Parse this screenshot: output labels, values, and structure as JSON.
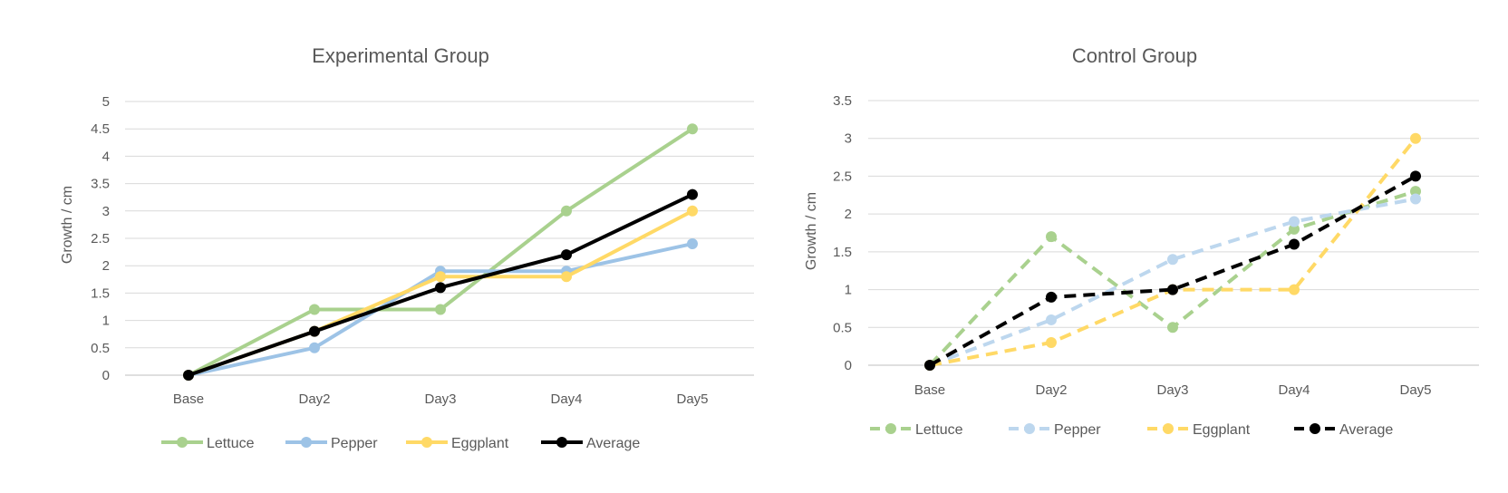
{
  "chart_data": [
    {
      "type": "line",
      "title": "Experimental Group",
      "xlabel": "",
      "ylabel": "Growth / cm",
      "categories": [
        "Base",
        "Day2",
        "Day3",
        "Day4",
        "Day5"
      ],
      "ylim": [
        0,
        5
      ],
      "yticks": [
        0,
        0.5,
        1,
        1.5,
        2,
        2.5,
        3,
        3.5,
        4,
        4.5,
        5
      ],
      "grid": true,
      "legend": "bottom",
      "line_style": "solid",
      "series": [
        {
          "name": "Lettuce",
          "color": "#A9D18E",
          "values": [
            0,
            1.2,
            1.2,
            3.0,
            4.5
          ]
        },
        {
          "name": "Pepper",
          "color": "#9DC3E6",
          "values": [
            0,
            0.5,
            1.9,
            1.9,
            2.4
          ]
        },
        {
          "name": "Eggplant",
          "color": "#FFD966",
          "values": [
            0,
            0.8,
            1.8,
            1.8,
            3.0
          ]
        },
        {
          "name": "Average",
          "color": "#000000",
          "values": [
            0,
            0.8,
            1.6,
            2.2,
            3.3
          ]
        }
      ]
    },
    {
      "type": "line",
      "title": "Control Group",
      "xlabel": "",
      "ylabel": "Growth / cm",
      "categories": [
        "Base",
        "Day2",
        "Day3",
        "Day4",
        "Day5"
      ],
      "ylim": [
        0,
        3.5
      ],
      "yticks": [
        0,
        0.5,
        1,
        1.5,
        2,
        2.5,
        3,
        3.5
      ],
      "grid": true,
      "legend": "bottom",
      "line_style": "dashed",
      "series": [
        {
          "name": "Lettuce",
          "color": "#A9D18E",
          "values": [
            0,
            1.7,
            0.5,
            1.8,
            2.3
          ]
        },
        {
          "name": "Pepper",
          "color": "#BDD7EE",
          "values": [
            0,
            0.6,
            1.4,
            1.9,
            2.2
          ]
        },
        {
          "name": "Eggplant",
          "color": "#FFD966",
          "values": [
            0,
            0.3,
            1.0,
            1.0,
            3.0
          ]
        },
        {
          "name": "Average",
          "color": "#000000",
          "values": [
            0,
            0.9,
            1.0,
            1.6,
            2.5
          ]
        }
      ]
    }
  ]
}
